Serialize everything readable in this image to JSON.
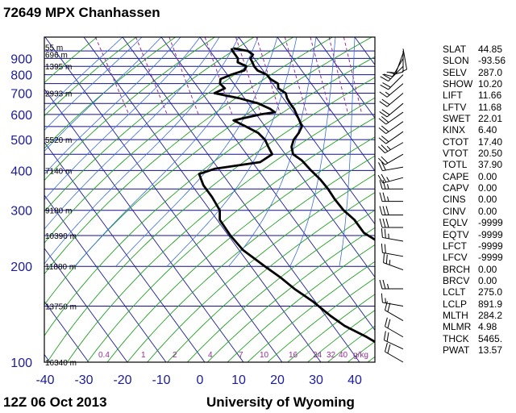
{
  "header": {
    "title": "72649 MPX Chanhassen"
  },
  "footer": {
    "time": "12Z 06 Oct 2013",
    "source": "University of Wyoming"
  },
  "chart_data": {
    "type": "skew-t",
    "pressure_levels": [
      100,
      200,
      300,
      400,
      500,
      600,
      700,
      800,
      900
    ],
    "temperature_ticks": [
      -40,
      -30,
      -20,
      -10,
      0,
      10,
      20,
      30,
      40
    ],
    "xlim": [
      -40,
      45
    ],
    "ylim_hpa": [
      1000,
      100
    ],
    "height_labels": [
      {
        "p": 100,
        "label": "16340 m"
      },
      {
        "p": 150,
        "label": "13750 m"
      },
      {
        "p": 200,
        "label": "11880 m"
      },
      {
        "p": 250,
        "label": "10390 m"
      },
      {
        "p": 300,
        "label": "9180 m"
      },
      {
        "p": 400,
        "label": "7140 m"
      },
      {
        "p": 500,
        "label": "5520 m"
      },
      {
        "p": 700,
        "label": "2933 m"
      },
      {
        "p": 850,
        "label": "1395 m"
      },
      {
        "p": 925,
        "label": "696 m"
      },
      {
        "p": 975,
        "label": "55 m"
      }
    ],
    "mixing_ratio_labels": [
      "0.4",
      "1",
      "2",
      "4",
      "7",
      "10",
      "16",
      "24",
      "32",
      "40",
      "g/kg"
    ],
    "mixing_ratio_values": [
      0.4,
      1,
      2,
      4,
      7,
      10,
      16,
      24,
      32,
      40
    ],
    "temperature_profile": [
      {
        "p": 968,
        "t": 6.5
      },
      {
        "p": 950,
        "t": 9.8
      },
      {
        "p": 925,
        "t": 10.4
      },
      {
        "p": 900,
        "t": 9.0
      },
      {
        "p": 875,
        "t": 8.8
      },
      {
        "p": 850,
        "t": 8.5
      },
      {
        "p": 825,
        "t": 8.6
      },
      {
        "p": 800,
        "t": 10.2
      },
      {
        "p": 775,
        "t": 10.3
      },
      {
        "p": 750,
        "t": 11.4
      },
      {
        "p": 725,
        "t": 10.6
      },
      {
        "p": 700,
        "t": 11.6
      },
      {
        "p": 675,
        "t": 11.0
      },
      {
        "p": 650,
        "t": 10.8
      },
      {
        "p": 625,
        "t": 10.8
      },
      {
        "p": 600,
        "t": 10.4
      },
      {
        "p": 575,
        "t": 10.0
      },
      {
        "p": 550,
        "t": 9.5
      },
      {
        "p": 525,
        "t": 7.5
      },
      {
        "p": 500,
        "t": 4.9
      },
      {
        "p": 475,
        "t": 3.0
      },
      {
        "p": 450,
        "t": 2.0
      },
      {
        "p": 430,
        "t": 3.1
      },
      {
        "p": 400,
        "t": 3.6
      },
      {
        "p": 375,
        "t": 4.3
      },
      {
        "p": 350,
        "t": 4.5
      },
      {
        "p": 325,
        "t": 4.3
      },
      {
        "p": 300,
        "t": 4.5
      },
      {
        "p": 280,
        "t": 5.5
      },
      {
        "p": 255,
        "t": 5.5
      },
      {
        "p": 230,
        "t": 8.7
      },
      {
        "p": 200,
        "t": 9.8
      },
      {
        "p": 175,
        "t": 10.8
      },
      {
        "p": 160,
        "t": 11.7
      },
      {
        "p": 145,
        "t": 13.4
      },
      {
        "p": 130,
        "t": 14.2
      },
      {
        "p": 120,
        "t": 18.0
      },
      {
        "p": 108,
        "t": 22.6
      },
      {
        "p": 100,
        "t": 26.5
      }
    ],
    "dewpoint_profile": [
      {
        "p": 968,
        "t": 6.0
      },
      {
        "p": 950,
        "t": 5.8
      },
      {
        "p": 925,
        "t": 5.8
      },
      {
        "p": 900,
        "t": 5.8
      },
      {
        "p": 875,
        "t": 5.0
      },
      {
        "p": 850,
        "t": 6.5
      },
      {
        "p": 825,
        "t": 5.2
      },
      {
        "p": 800,
        "t": 1.0
      },
      {
        "p": 775,
        "t": -2.6
      },
      {
        "p": 750,
        "t": -3.6
      },
      {
        "p": 725,
        "t": -3.2
      },
      {
        "p": 700,
        "t": -6.8
      },
      {
        "p": 675,
        "t": -1.4
      },
      {
        "p": 650,
        "t": 2.6
      },
      {
        "p": 625,
        "t": 4.6
      },
      {
        "p": 610,
        "t": 5.2
      },
      {
        "p": 600,
        "t": 1.0
      },
      {
        "p": 575,
        "t": -7.0
      },
      {
        "p": 550,
        "t": -5.0
      },
      {
        "p": 525,
        "t": -3.0
      },
      {
        "p": 500,
        "t": -2.5
      },
      {
        "p": 475,
        "t": -3.0
      },
      {
        "p": 450,
        "t": -3.4
      },
      {
        "p": 425,
        "t": -8.0
      },
      {
        "p": 405,
        "t": -21.0
      },
      {
        "p": 390,
        "t": -26.0
      },
      {
        "p": 360,
        "t": -27.0
      },
      {
        "p": 330,
        "t": -27.0
      },
      {
        "p": 300,
        "t": -27.5
      },
      {
        "p": 280,
        "t": -29.3
      },
      {
        "p": 250,
        "t": -29.5
      },
      {
        "p": 225,
        "t": -29.0
      },
      {
        "p": 200,
        "t": -26.4
      },
      {
        "p": 185,
        "t": -24.5
      },
      {
        "p": 170,
        "t": -23.0
      },
      {
        "p": 155,
        "t": -20.6
      },
      {
        "p": 140,
        "t": -18.8
      },
      {
        "p": 130,
        "t": -17.0
      },
      {
        "p": 120,
        "t": -13.4
      },
      {
        "p": 110,
        "t": -10.4
      },
      {
        "p": 100,
        "t": -4.5
      }
    ],
    "wind_barbs": [
      {
        "p": 100,
        "dir": 300,
        "spd": 20
      },
      {
        "p": 110,
        "dir": 295,
        "spd": 20
      },
      {
        "p": 120,
        "dir": 300,
        "spd": 20
      },
      {
        "p": 135,
        "dir": 300,
        "spd": 20
      },
      {
        "p": 150,
        "dir": 280,
        "spd": 15
      },
      {
        "p": 170,
        "dir": 270,
        "spd": 25
      },
      {
        "p": 195,
        "dir": 290,
        "spd": 25
      },
      {
        "p": 215,
        "dir": 280,
        "spd": 20
      },
      {
        "p": 240,
        "dir": 280,
        "spd": 25
      },
      {
        "p": 265,
        "dir": 270,
        "spd": 30
      },
      {
        "p": 290,
        "dir": 270,
        "spd": 30
      },
      {
        "p": 320,
        "dir": 270,
        "spd": 25
      },
      {
        "p": 350,
        "dir": 270,
        "spd": 25
      },
      {
        "p": 380,
        "dir": 255,
        "spd": 25
      },
      {
        "p": 410,
        "dir": 260,
        "spd": 20
      },
      {
        "p": 450,
        "dir": 240,
        "spd": 20
      },
      {
        "p": 490,
        "dir": 240,
        "spd": 25
      },
      {
        "p": 530,
        "dir": 235,
        "spd": 20
      },
      {
        "p": 570,
        "dir": 235,
        "spd": 20
      },
      {
        "p": 610,
        "dir": 235,
        "spd": 20
      },
      {
        "p": 650,
        "dir": 230,
        "spd": 20
      },
      {
        "p": 700,
        "dir": 230,
        "spd": 20
      },
      {
        "p": 750,
        "dir": 230,
        "spd": 15
      },
      {
        "p": 800,
        "dir": 225,
        "spd": 20
      },
      {
        "p": 850,
        "dir": 225,
        "spd": 20
      },
      {
        "p": 900,
        "dir": 210,
        "spd": 15
      },
      {
        "p": 935,
        "dir": 200,
        "spd": 10
      },
      {
        "p": 950,
        "dir": 180,
        "spd": 10
      },
      {
        "p": 965,
        "dir": 170,
        "spd": 5
      }
    ]
  },
  "indices": [
    {
      "key": "SLAT",
      "value": "44.85"
    },
    {
      "key": "SLON",
      "value": "-93.56"
    },
    {
      "key": "SELV",
      "value": "287.0"
    },
    {
      "key": "SHOW",
      "value": "10.20"
    },
    {
      "key": "LIFT",
      "value": "11.66"
    },
    {
      "key": "LFTV",
      "value": "11.68"
    },
    {
      "key": "SWET",
      "value": "22.01"
    },
    {
      "key": "KINX",
      "value": "6.40"
    },
    {
      "key": "CTOT",
      "value": "17.40"
    },
    {
      "key": "VTOT",
      "value": "20.50"
    },
    {
      "key": "TOTL",
      "value": "37.90"
    },
    {
      "key": "CAPE",
      "value": "0.00"
    },
    {
      "key": "CAPV",
      "value": "0.00"
    },
    {
      "key": "CINS",
      "value": "0.00"
    },
    {
      "key": "CINV",
      "value": "0.00"
    },
    {
      "key": "EQLV",
      "value": "-9999"
    },
    {
      "key": "EQTV",
      "value": "-9999"
    },
    {
      "key": "LFCT",
      "value": "-9999"
    },
    {
      "key": "LFCV",
      "value": "-9999"
    },
    {
      "key": "BRCH",
      "value": "0.00"
    },
    {
      "key": "BRCV",
      "value": "0.00"
    },
    {
      "key": "LCLT",
      "value": "275.0"
    },
    {
      "key": "LCLP",
      "value": "891.9"
    },
    {
      "key": "MLTH",
      "value": "284.2"
    },
    {
      "key": "MLMR",
      "value": "4.98"
    },
    {
      "key": "THCK",
      "value": "5465."
    },
    {
      "key": "PWAT",
      "value": "13.57"
    }
  ]
}
